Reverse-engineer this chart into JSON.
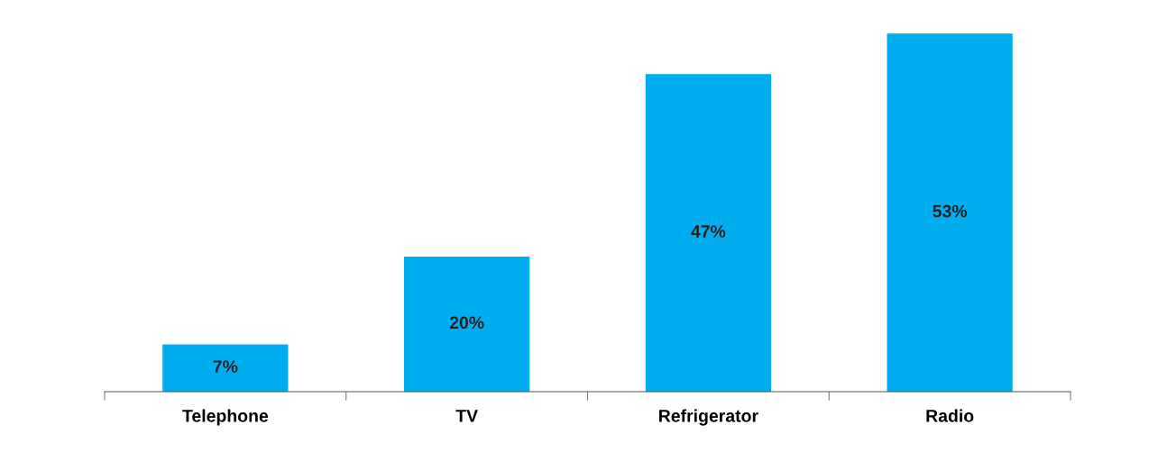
{
  "chart_data": {
    "type": "bar",
    "categories": [
      "Telephone",
      "TV",
      "Refrigerator",
      "Radio"
    ],
    "values": [
      7,
      20,
      47,
      53
    ],
    "value_labels": [
      "7%",
      "20%",
      "47%",
      "53%"
    ],
    "color": "#00adef",
    "grid": false,
    "legend": false
  }
}
